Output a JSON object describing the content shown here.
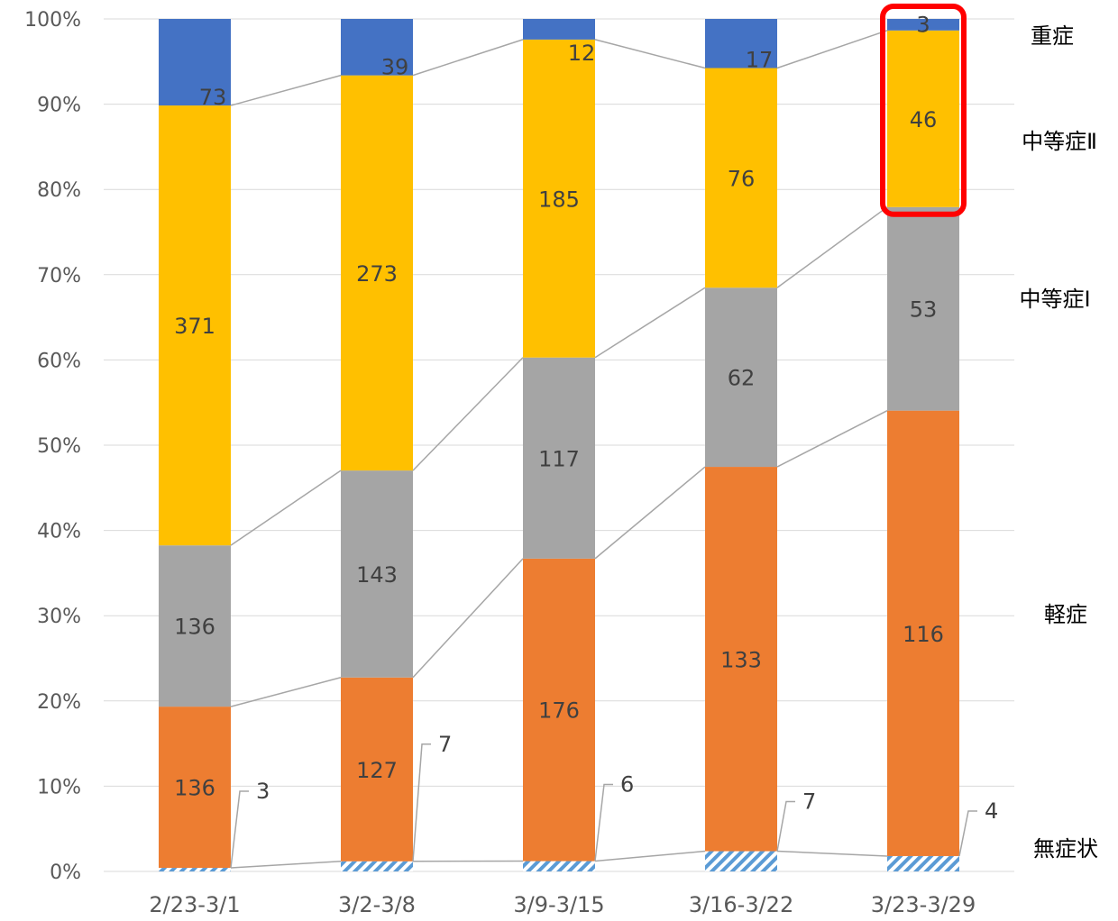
{
  "chart_data": {
    "type": "bar",
    "stacked": "percent",
    "categories": [
      "2/23-3/1",
      "3/2-3/8",
      "3/9-3/15",
      "3/16-3/22",
      "3/23-3/29"
    ],
    "series": [
      {
        "name": "無症状",
        "values": [
          3,
          7,
          6,
          7,
          4
        ],
        "color": "#5B9BD5",
        "pattern": "diagonal-hatch"
      },
      {
        "name": "軽症",
        "values": [
          136,
          127,
          176,
          133,
          116
        ],
        "color": "#ED7D31"
      },
      {
        "name": "中等症Ⅰ",
        "values": [
          136,
          143,
          117,
          62,
          53
        ],
        "color": "#A5A5A5"
      },
      {
        "name": "中等症Ⅱ",
        "values": [
          371,
          273,
          185,
          76,
          46
        ],
        "color": "#FFC000"
      },
      {
        "name": "重症",
        "values": [
          73,
          39,
          12,
          17,
          3
        ],
        "color": "#4472C4"
      }
    ],
    "ylim": [
      0,
      100
    ],
    "yticks": [
      "0%",
      "10%",
      "20%",
      "30%",
      "40%",
      "50%",
      "60%",
      "70%",
      "80%",
      "90%",
      "100%"
    ],
    "grid": true,
    "series_lines": true,
    "legend": "series names printed at right of last bar",
    "highlight": {
      "category_index": 4,
      "series": [
        "重症",
        "中等症Ⅱ"
      ],
      "color": "#FF0000"
    }
  }
}
